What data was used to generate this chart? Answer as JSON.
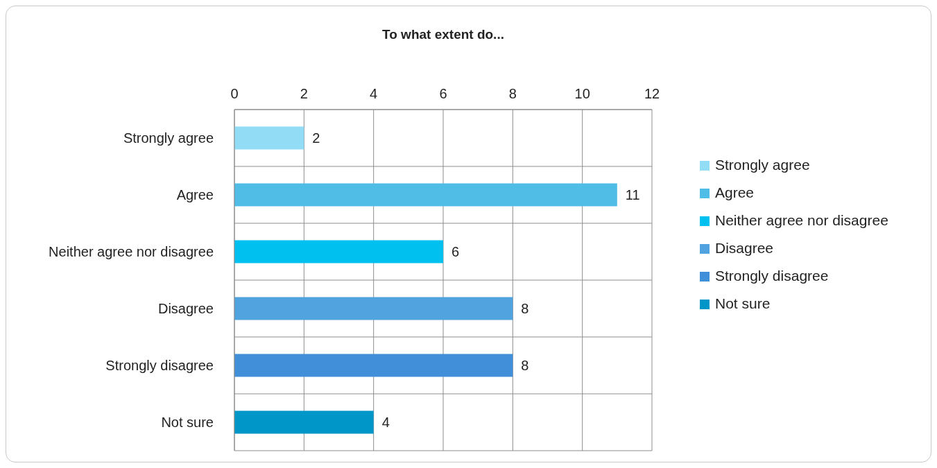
{
  "chart_data": {
    "type": "bar",
    "orientation": "horizontal",
    "stacked": true,
    "title": "To what extent do...",
    "categories": [
      "Strongly agree",
      "Agree",
      "Neither agree nor disagree",
      "Disagree",
      "Strongly disagree",
      "Not sure"
    ],
    "series": [
      {
        "name": "Strongly agree",
        "color": "#92dcf6",
        "values": [
          2,
          null,
          null,
          null,
          null,
          null
        ]
      },
      {
        "name": "Agree",
        "color": "#4fbde6",
        "values": [
          null,
          11,
          null,
          null,
          null,
          null
        ]
      },
      {
        "name": "Neither agree nor disagree",
        "color": "#00c0f0",
        "values": [
          null,
          null,
          6,
          null,
          null,
          null
        ]
      },
      {
        "name": "Disagree",
        "color": "#50a3df",
        "values": [
          null,
          null,
          null,
          8,
          null,
          null
        ]
      },
      {
        "name": "Strongly disagree",
        "color": "#408fd8",
        "values": [
          null,
          null,
          null,
          null,
          8,
          null
        ]
      },
      {
        "name": "Not sure",
        "color": "#0096c8",
        "values": [
          null,
          null,
          null,
          null,
          null,
          4
        ]
      }
    ],
    "xlim": [
      0,
      12
    ],
    "xticks": [
      0,
      2,
      4,
      6,
      8,
      10,
      12
    ],
    "grid": true,
    "legend": "right",
    "data_labels": true
  }
}
